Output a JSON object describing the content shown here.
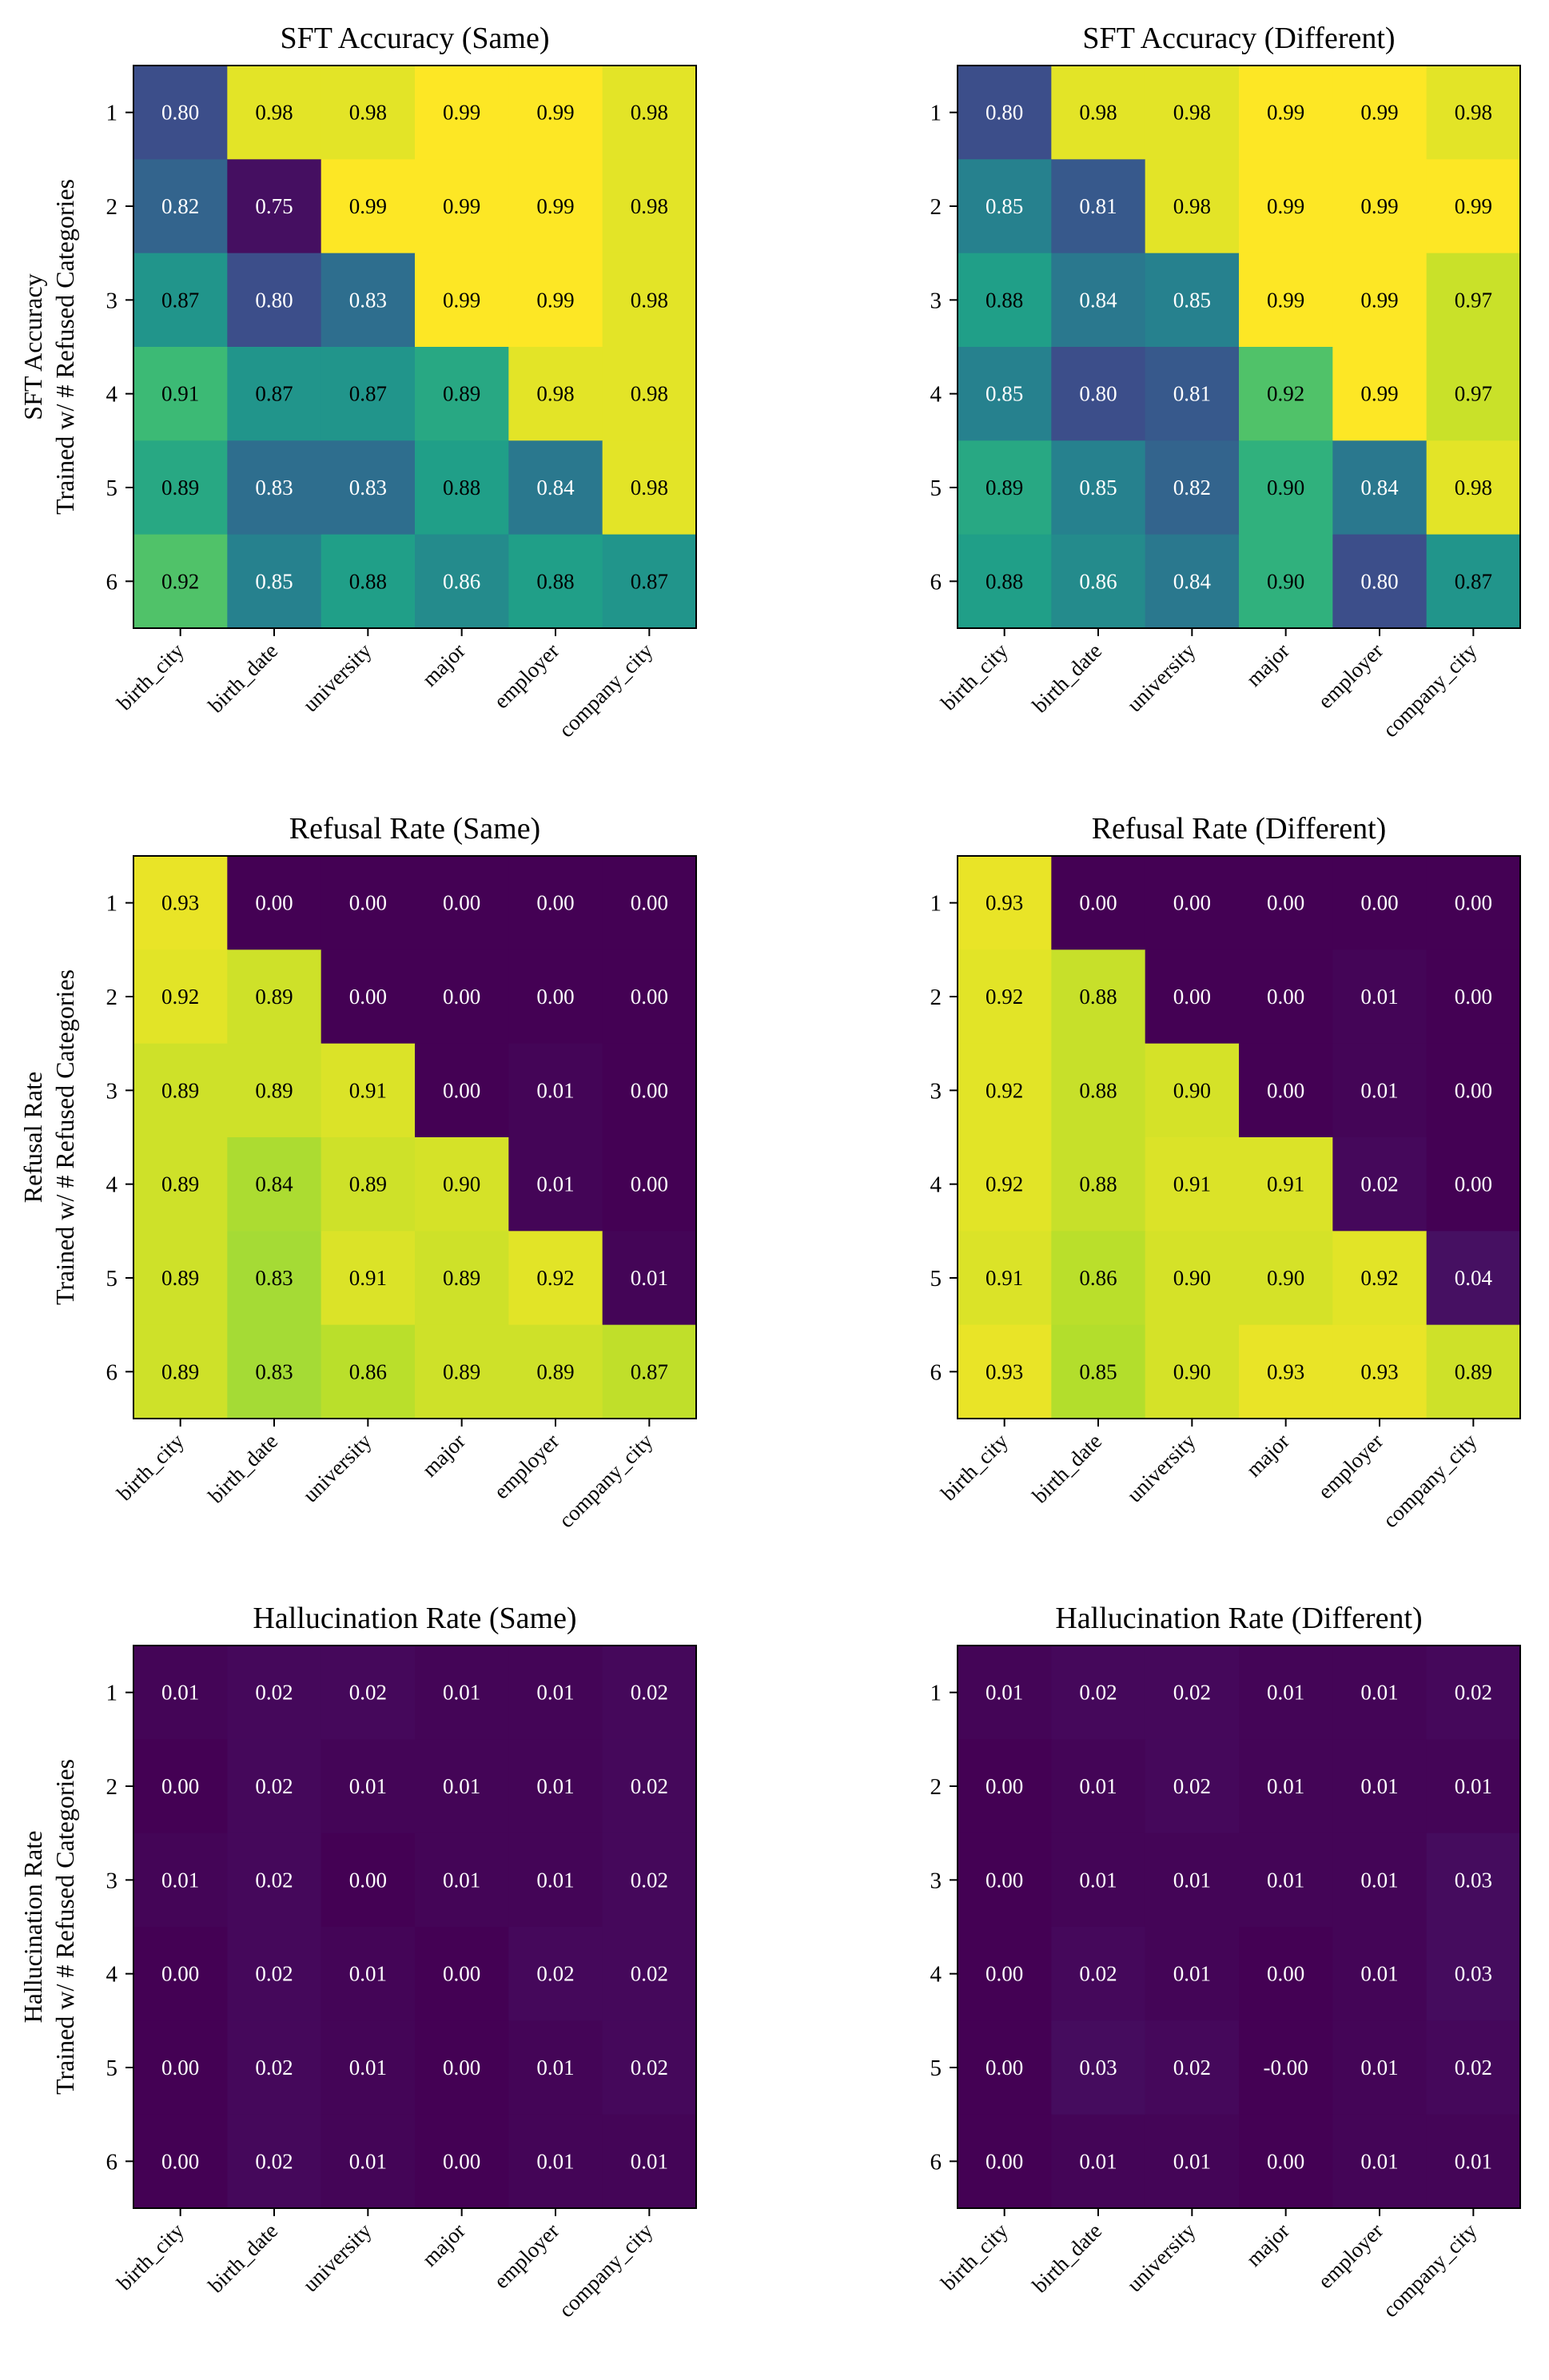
{
  "figure": {
    "row_axis_label": "Trained w/ # Refused Categories"
  },
  "colors": {
    "viridis": [
      "#440154",
      "#482878",
      "#3e4989",
      "#31688e",
      "#26828e",
      "#1f9e89",
      "#35b779",
      "#6ece58",
      "#b5de2b",
      "#fde725"
    ]
  },
  "chart_data": [
    {
      "type": "heatmap",
      "title": "SFT Accuracy (Same)",
      "ylabel": "SFT Accuracy",
      "xlabels": [
        "birth_city",
        "birth_date",
        "university",
        "major",
        "employer",
        "company_city"
      ],
      "ylabels": [
        "1",
        "2",
        "3",
        "4",
        "5",
        "6"
      ],
      "vmin": 0.74,
      "vmax": 0.99,
      "values": [
        [
          0.8,
          0.98,
          0.98,
          0.99,
          0.99,
          0.98
        ],
        [
          0.82,
          0.75,
          0.99,
          0.99,
          0.99,
          0.98
        ],
        [
          0.87,
          0.8,
          0.83,
          0.99,
          0.99,
          0.98
        ],
        [
          0.91,
          0.87,
          0.87,
          0.89,
          0.98,
          0.98
        ],
        [
          0.89,
          0.83,
          0.83,
          0.88,
          0.84,
          0.98
        ],
        [
          0.92,
          0.85,
          0.88,
          0.86,
          0.88,
          0.87
        ]
      ],
      "labels": [
        [
          "0.80",
          "0.98",
          "0.98",
          "0.99",
          "0.99",
          "0.98"
        ],
        [
          "0.82",
          "0.75",
          "0.99",
          "0.99",
          "0.99",
          "0.98"
        ],
        [
          "0.87",
          "0.80",
          "0.83",
          "0.99",
          "0.99",
          "0.98"
        ],
        [
          "0.91",
          "0.87",
          "0.87",
          "0.89",
          "0.98",
          "0.98"
        ],
        [
          "0.89",
          "0.83",
          "0.83",
          "0.88",
          "0.84",
          "0.98"
        ],
        [
          "0.92",
          "0.85",
          "0.88",
          "0.86",
          "0.88",
          "0.87"
        ]
      ]
    },
    {
      "type": "heatmap",
      "title": "SFT Accuracy (Different)",
      "ylabel": "",
      "xlabels": [
        "birth_city",
        "birth_date",
        "university",
        "major",
        "employer",
        "company_city"
      ],
      "ylabels": [
        "1",
        "2",
        "3",
        "4",
        "5",
        "6"
      ],
      "vmin": 0.74,
      "vmax": 0.99,
      "values": [
        [
          0.8,
          0.98,
          0.98,
          0.99,
          0.99,
          0.98
        ],
        [
          0.85,
          0.81,
          0.98,
          0.99,
          0.99,
          0.99
        ],
        [
          0.88,
          0.84,
          0.85,
          0.99,
          0.99,
          0.97
        ],
        [
          0.85,
          0.8,
          0.81,
          0.92,
          0.99,
          0.97
        ],
        [
          0.89,
          0.85,
          0.82,
          0.9,
          0.84,
          0.98
        ],
        [
          0.88,
          0.86,
          0.84,
          0.9,
          0.8,
          0.87
        ]
      ],
      "labels": [
        [
          "0.80",
          "0.98",
          "0.98",
          "0.99",
          "0.99",
          "0.98"
        ],
        [
          "0.85",
          "0.81",
          "0.98",
          "0.99",
          "0.99",
          "0.99"
        ],
        [
          "0.88",
          "0.84",
          "0.85",
          "0.99",
          "0.99",
          "0.97"
        ],
        [
          "0.85",
          "0.80",
          "0.81",
          "0.92",
          "0.99",
          "0.97"
        ],
        [
          "0.89",
          "0.85",
          "0.82",
          "0.90",
          "0.84",
          "0.98"
        ],
        [
          "0.88",
          "0.86",
          "0.84",
          "0.90",
          "0.80",
          "0.87"
        ]
      ]
    },
    {
      "type": "heatmap",
      "title": "Refusal Rate (Same)",
      "ylabel": "Refusal Rate",
      "xlabels": [
        "birth_city",
        "birth_date",
        "university",
        "major",
        "employer",
        "company_city"
      ],
      "ylabels": [
        "1",
        "2",
        "3",
        "4",
        "5",
        "6"
      ],
      "vmin": 0.0,
      "vmax": 0.96,
      "values": [
        [
          0.93,
          0.0,
          0.0,
          0.0,
          0.0,
          0.0
        ],
        [
          0.92,
          0.89,
          0.0,
          0.0,
          0.0,
          0.0
        ],
        [
          0.89,
          0.89,
          0.91,
          0.0,
          0.01,
          0.0
        ],
        [
          0.89,
          0.84,
          0.89,
          0.9,
          0.01,
          0.0
        ],
        [
          0.89,
          0.83,
          0.91,
          0.89,
          0.92,
          0.01
        ],
        [
          0.89,
          0.83,
          0.86,
          0.89,
          0.89,
          0.87
        ]
      ],
      "labels": [
        [
          "0.93",
          "0.00",
          "0.00",
          "0.00",
          "0.00",
          "0.00"
        ],
        [
          "0.92",
          "0.89",
          "0.00",
          "0.00",
          "0.00",
          "0.00"
        ],
        [
          "0.89",
          "0.89",
          "0.91",
          "0.00",
          "0.01",
          "0.00"
        ],
        [
          "0.89",
          "0.84",
          "0.89",
          "0.90",
          "0.01",
          "0.00"
        ],
        [
          "0.89",
          "0.83",
          "0.91",
          "0.89",
          "0.92",
          "0.01"
        ],
        [
          "0.89",
          "0.83",
          "0.86",
          "0.89",
          "0.89",
          "0.87"
        ]
      ]
    },
    {
      "type": "heatmap",
      "title": "Refusal Rate (Different)",
      "ylabel": "",
      "xlabels": [
        "birth_city",
        "birth_date",
        "university",
        "major",
        "employer",
        "company_city"
      ],
      "ylabels": [
        "1",
        "2",
        "3",
        "4",
        "5",
        "6"
      ],
      "vmin": 0.0,
      "vmax": 0.96,
      "values": [
        [
          0.93,
          0.0,
          0.0,
          0.0,
          0.0,
          0.0
        ],
        [
          0.92,
          0.88,
          0.0,
          0.0,
          0.01,
          0.0
        ],
        [
          0.92,
          0.88,
          0.9,
          0.0,
          0.01,
          0.0
        ],
        [
          0.92,
          0.88,
          0.91,
          0.91,
          0.02,
          0.0
        ],
        [
          0.91,
          0.86,
          0.9,
          0.9,
          0.92,
          0.04
        ],
        [
          0.93,
          0.85,
          0.9,
          0.93,
          0.93,
          0.89
        ]
      ],
      "labels": [
        [
          "0.93",
          "0.00",
          "0.00",
          "0.00",
          "0.00",
          "0.00"
        ],
        [
          "0.92",
          "0.88",
          "0.00",
          "0.00",
          "0.01",
          "0.00"
        ],
        [
          "0.92",
          "0.88",
          "0.90",
          "0.00",
          "0.01",
          "0.00"
        ],
        [
          "0.92",
          "0.88",
          "0.91",
          "0.91",
          "0.02",
          "0.00"
        ],
        [
          "0.91",
          "0.86",
          "0.90",
          "0.90",
          "0.92",
          "0.04"
        ],
        [
          "0.93",
          "0.85",
          "0.90",
          "0.93",
          "0.93",
          "0.89"
        ]
      ]
    },
    {
      "type": "heatmap",
      "title": "Hallucination Rate (Same)",
      "ylabel": "Hallucination Rate",
      "xlabels": [
        "birth_city",
        "birth_date",
        "university",
        "major",
        "employer",
        "company_city"
      ],
      "ylabels": [
        "1",
        "2",
        "3",
        "4",
        "5",
        "6"
      ],
      "vmin": 0.0,
      "vmax": 0.96,
      "values": [
        [
          0.01,
          0.02,
          0.02,
          0.01,
          0.01,
          0.02
        ],
        [
          0.0,
          0.02,
          0.01,
          0.01,
          0.01,
          0.02
        ],
        [
          0.01,
          0.02,
          0.0,
          0.01,
          0.01,
          0.02
        ],
        [
          0.0,
          0.02,
          0.01,
          0.0,
          0.02,
          0.02
        ],
        [
          0.0,
          0.02,
          0.01,
          0.0,
          0.01,
          0.02
        ],
        [
          0.0,
          0.02,
          0.01,
          0.0,
          0.01,
          0.01
        ]
      ],
      "labels": [
        [
          "0.01",
          "0.02",
          "0.02",
          "0.01",
          "0.01",
          "0.02"
        ],
        [
          "0.00",
          "0.02",
          "0.01",
          "0.01",
          "0.01",
          "0.02"
        ],
        [
          "0.01",
          "0.02",
          "0.00",
          "0.01",
          "0.01",
          "0.02"
        ],
        [
          "0.00",
          "0.02",
          "0.01",
          "0.00",
          "0.02",
          "0.02"
        ],
        [
          "0.00",
          "0.02",
          "0.01",
          "0.00",
          "0.01",
          "0.02"
        ],
        [
          "0.00",
          "0.02",
          "0.01",
          "0.00",
          "0.01",
          "0.01"
        ]
      ]
    },
    {
      "type": "heatmap",
      "title": "Hallucination Rate (Different)",
      "ylabel": "",
      "xlabels": [
        "birth_city",
        "birth_date",
        "university",
        "major",
        "employer",
        "company_city"
      ],
      "ylabels": [
        "1",
        "2",
        "3",
        "4",
        "5",
        "6"
      ],
      "vmin": 0.0,
      "vmax": 0.96,
      "values": [
        [
          0.01,
          0.02,
          0.02,
          0.01,
          0.01,
          0.02
        ],
        [
          0.0,
          0.01,
          0.02,
          0.01,
          0.01,
          0.01
        ],
        [
          0.0,
          0.01,
          0.01,
          0.01,
          0.01,
          0.03
        ],
        [
          0.0,
          0.02,
          0.01,
          0.0,
          0.01,
          0.03
        ],
        [
          0.0,
          0.03,
          0.02,
          0.0,
          0.01,
          0.02
        ],
        [
          0.0,
          0.01,
          0.01,
          0.0,
          0.01,
          0.01
        ]
      ],
      "labels": [
        [
          "0.01",
          "0.02",
          "0.02",
          "0.01",
          "0.01",
          "0.02"
        ],
        [
          "0.00",
          "0.01",
          "0.02",
          "0.01",
          "0.01",
          "0.01"
        ],
        [
          "0.00",
          "0.01",
          "0.01",
          "0.01",
          "0.01",
          "0.03"
        ],
        [
          "0.00",
          "0.02",
          "0.01",
          "0.00",
          "0.01",
          "0.03"
        ],
        [
          "0.00",
          "0.03",
          "0.02",
          "-0.00",
          "0.01",
          "0.02"
        ],
        [
          "0.00",
          "0.01",
          "0.01",
          "0.00",
          "0.01",
          "0.01"
        ]
      ]
    }
  ]
}
